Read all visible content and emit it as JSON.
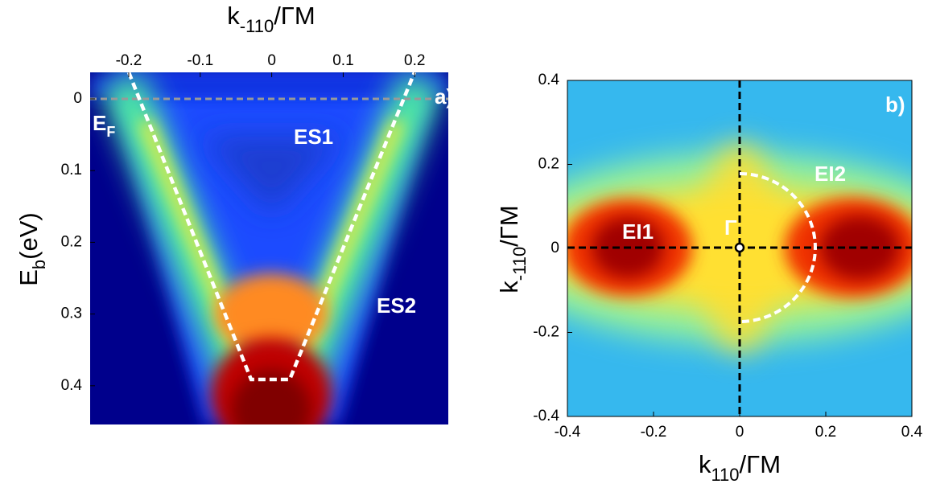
{
  "chart_data": [
    {
      "type": "heatmap",
      "xlabel": [
        "k",
        "-110",
        "/ΓM"
      ],
      "ylabel": [
        "E",
        "b",
        "(eV)"
      ],
      "xlim": [
        -0.254,
        0.247
      ],
      "xticks": [
        -0.2,
        -0.1,
        0,
        0.1,
        0.2
      ],
      "ylim": [
        -0.037,
        0.454
      ],
      "yticks": [
        0,
        0.1,
        0.2,
        0.3,
        0.4
      ],
      "annotations": [
        "a)",
        "ES1",
        "ES2"
      ],
      "fermi_label": [
        "E",
        "F"
      ]
    },
    {
      "type": "heatmap",
      "xlabel": [
        "k",
        "110",
        "/ΓM"
      ],
      "ylabel": [
        "k",
        "-110",
        "/ΓM"
      ],
      "xlim": [
        -0.4,
        0.4
      ],
      "xticks": [
        -0.4,
        -0.2,
        0,
        0.2,
        0.4
      ],
      "ylim": [
        -0.4,
        0.4
      ],
      "yticks": [
        -0.4,
        -0.2,
        0,
        0.2,
        0.4
      ],
      "annotations": [
        "b)",
        "EI1",
        "EI2",
        "Γ"
      ]
    }
  ]
}
